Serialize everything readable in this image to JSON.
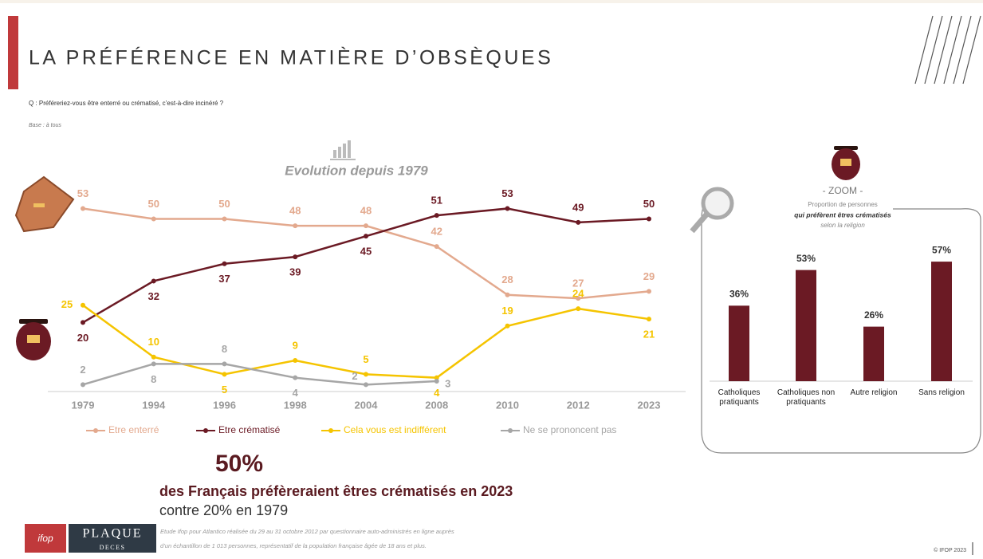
{
  "slide": {
    "title": "LA PRÉFÉRENCE EN MATIÈRE D’OBSÈQUES",
    "question": "Q : Préféreriez-vous être enterré ou crématisé, c’est-à-dire incinéré ?",
    "base": "Base : à tous",
    "headline_number": "50%",
    "headline_text": "des Français préfèreraient êtres crématisés en 2023",
    "headline_sub": "contre 20% en 1979",
    "footnote_line1": "Etude Ifop pour Atlantico réalisée du 29 au 31 octobre 2012 par questionnaire auto-administrés en ligne auprès",
    "footnote_line2": "d’un échantillon de 1 013 personnes, représentatif de la population française âgée de 18 ans et plus.",
    "logo_ifop": "ifop",
    "logo_plaque": "PLAQUE",
    "logo_deces": "DECES",
    "copyright": "© IFOP 2023"
  },
  "chart_data": [
    {
      "type": "line",
      "title": "Evolution depuis 1979",
      "categories": [
        "1979",
        "1994",
        "1996",
        "1998",
        "2004",
        "2008",
        "2010",
        "2012",
        "2023"
      ],
      "series": [
        {
          "name": "Etre enterré",
          "color": "#e3a98e",
          "values": [
            53,
            50,
            50,
            48,
            48,
            42,
            28,
            27,
            29
          ]
        },
        {
          "name": "Etre crématisé",
          "color": "#6b1a24",
          "values": [
            20,
            32,
            37,
            39,
            45,
            51,
            53,
            49,
            50
          ]
        },
        {
          "name": "Cela vous est indifférent",
          "color": "#f5c400",
          "values": [
            25,
            10,
            5,
            9,
            5,
            4,
            19,
            24,
            21
          ]
        },
        {
          "name": "Ne se prononcent pas",
          "color": "#a6a6a6",
          "values": [
            2,
            8,
            8,
            4,
            2,
            3,
            null,
            null,
            null
          ]
        }
      ]
    },
    {
      "type": "bar",
      "title": "- ZOOM -",
      "subtitle_line1": "Proportion de personnes",
      "subtitle_line2": "qui préfèrent êtres crématisés",
      "subtitle_line3": "selon la religion",
      "categories": [
        "Catholiques pratiquants",
        "Catholiques non pratiquants",
        "Autre religion",
        "Sans religion"
      ],
      "values": [
        36,
        53,
        26,
        57
      ],
      "value_labels": [
        "36%",
        "53%",
        "26%",
        "57%"
      ],
      "color": "#6b1a24"
    }
  ]
}
